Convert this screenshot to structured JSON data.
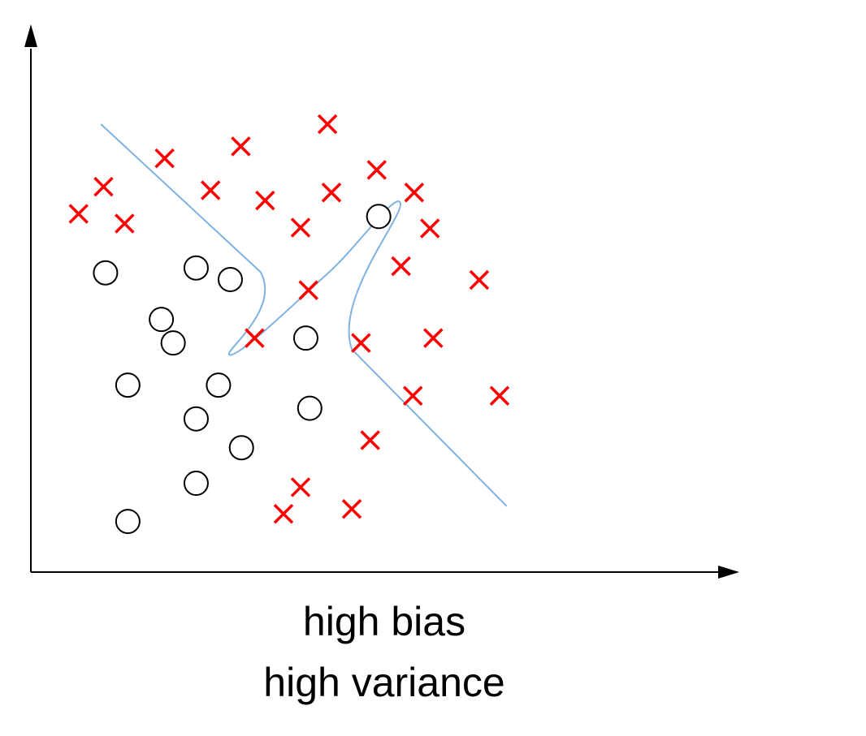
{
  "caption": {
    "line1": "high bias",
    "line2": "high variance"
  },
  "chart_data": {
    "type": "scatter",
    "title": "",
    "xlabel": "",
    "ylabel": "",
    "grid": false,
    "legend": "none",
    "xlim": [
      0,
      100
    ],
    "ylim": [
      0,
      100
    ],
    "colors": {
      "axis": "#000000",
      "cross": "#ff0000",
      "circle_stroke": "#000000",
      "circle_fill": "#ffffff",
      "boundary": "#7fb2e0"
    },
    "series": [
      {
        "marker": "circle",
        "points": [
          [
            10.5,
            66.5
          ],
          [
            24.3,
            67.6
          ],
          [
            29.5,
            65.0
          ],
          [
            19.0,
            56.0
          ],
          [
            20.8,
            50.7
          ],
          [
            13.9,
            41.2
          ],
          [
            27.7,
            41.2
          ],
          [
            24.3,
            33.6
          ],
          [
            31.2,
            27.1
          ],
          [
            24.3,
            19.1
          ],
          [
            13.9,
            10.5
          ],
          [
            41.6,
            36.0
          ],
          [
            41.0,
            51.8
          ],
          [
            52.1,
            79.2
          ]
        ]
      },
      {
        "marker": "cross",
        "points": [
          [
            6.4,
            79.8
          ],
          [
            10.2,
            85.9
          ],
          [
            13.4,
            77.6
          ],
          [
            19.5,
            92.3
          ],
          [
            31.1,
            95.0
          ],
          [
            26.5,
            85.1
          ],
          [
            34.8,
            82.8
          ],
          [
            44.3,
            100.0
          ],
          [
            44.9,
            84.6
          ],
          [
            51.8,
            89.7
          ],
          [
            57.5,
            84.6
          ],
          [
            40.2,
            76.7
          ],
          [
            59.9,
            76.5
          ],
          [
            55.5,
            68.0
          ],
          [
            67.4,
            64.9
          ],
          [
            41.4,
            62.6
          ],
          [
            33.2,
            51.8
          ],
          [
            49.4,
            50.7
          ],
          [
            60.4,
            51.8
          ],
          [
            57.3,
            38.8
          ],
          [
            70.5,
            38.8
          ],
          [
            50.8,
            28.8
          ],
          [
            40.2,
            18.2
          ],
          [
            37.6,
            12.2
          ],
          [
            48.0,
            13.3
          ]
        ]
      }
    ],
    "boundary": [
      [
        9.8,
        100.0
      ],
      [
        34.1,
        66.7
      ],
      [
        29.5,
        48.0
      ],
      [
        44.5,
        66.6
      ],
      [
        55.4,
        82.2
      ],
      [
        48.0,
        49.3
      ],
      [
        71.6,
        13.9
      ]
    ]
  }
}
